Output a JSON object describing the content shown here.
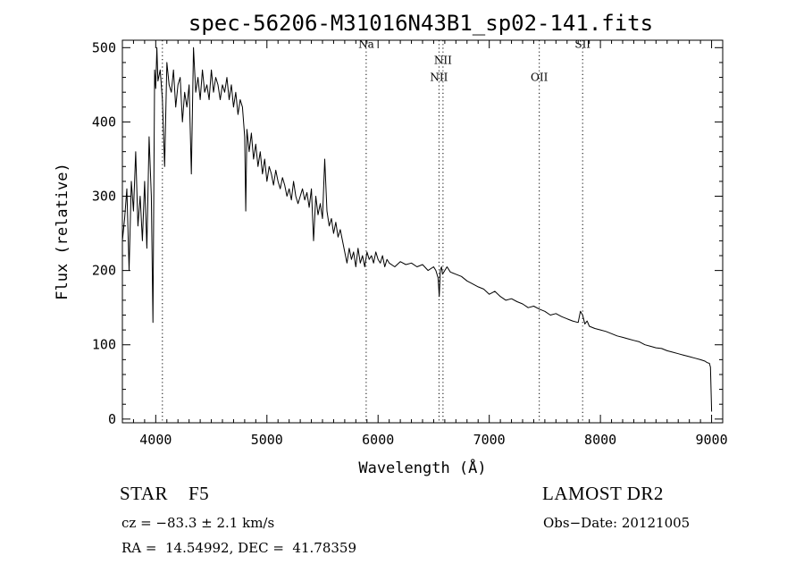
{
  "chart_data": {
    "type": "line",
    "title": "spec-56206-M31016N43B1_sp02-141.fits",
    "xlabel": "Wavelength (Å)",
    "ylabel": "Flux (relative)",
    "xlim": [
      3700,
      9100
    ],
    "ylim": [
      -5,
      510
    ],
    "xticks": [
      4000,
      5000,
      6000,
      7000,
      8000,
      9000
    ],
    "yticks": [
      0,
      100,
      200,
      300,
      400,
      500
    ],
    "grid": false,
    "line_color": "#000000",
    "lines": [
      {
        "name": "Na",
        "x": 5893,
        "label_y": 500
      },
      {
        "name": "NII",
        "x": 6548,
        "label_y": 455
      },
      {
        "name": "NII",
        "x": 6584,
        "label_y": 478
      },
      {
        "name": "OII",
        "x": 7450,
        "label_y": 455
      },
      {
        "name": "SII",
        "x": 7840,
        "label_y": 500
      },
      {
        "name": "",
        "x": 4060,
        "label_y": 0
      }
    ],
    "spectrum": {
      "x": [
        3700,
        3720,
        3740,
        3760,
        3780,
        3800,
        3820,
        3840,
        3860,
        3880,
        3900,
        3920,
        3940,
        3960,
        3975,
        3990,
        4000,
        4010,
        4020,
        4040,
        4060,
        4080,
        4100,
        4120,
        4140,
        4160,
        4180,
        4200,
        4220,
        4240,
        4260,
        4280,
        4300,
        4320,
        4340,
        4360,
        4380,
        4400,
        4420,
        4440,
        4460,
        4480,
        4500,
        4520,
        4540,
        4560,
        4580,
        4600,
        4620,
        4640,
        4660,
        4680,
        4700,
        4720,
        4740,
        4760,
        4780,
        4800,
        4810,
        4820,
        4840,
        4860,
        4880,
        4900,
        4920,
        4940,
        4960,
        4980,
        5000,
        5020,
        5040,
        5060,
        5080,
        5100,
        5120,
        5140,
        5160,
        5180,
        5200,
        5220,
        5240,
        5260,
        5280,
        5300,
        5320,
        5340,
        5360,
        5380,
        5400,
        5420,
        5440,
        5460,
        5480,
        5500,
        5520,
        5540,
        5560,
        5580,
        5600,
        5620,
        5640,
        5660,
        5680,
        5700,
        5720,
        5740,
        5760,
        5780,
        5800,
        5820,
        5840,
        5860,
        5880,
        5900,
        5920,
        5940,
        5960,
        5980,
        6000,
        6020,
        6040,
        6060,
        6080,
        6100,
        6150,
        6200,
        6250,
        6300,
        6350,
        6400,
        6450,
        6500,
        6520,
        6540,
        6550,
        6560,
        6570,
        6580,
        6600,
        6620,
        6650,
        6700,
        6750,
        6800,
        6850,
        6900,
        6950,
        7000,
        7050,
        7100,
        7150,
        7200,
        7250,
        7300,
        7350,
        7400,
        7450,
        7500,
        7550,
        7600,
        7650,
        7700,
        7750,
        7800,
        7820,
        7840,
        7860,
        7880,
        7900,
        7950,
        8000,
        8050,
        8100,
        8150,
        8200,
        8250,
        8300,
        8350,
        8400,
        8450,
        8500,
        8550,
        8600,
        8650,
        8700,
        8750,
        8800,
        8850,
        8900,
        8940,
        8960,
        8980,
        8990,
        9000
      ],
      "y": [
        240,
        270,
        310,
        200,
        320,
        280,
        360,
        260,
        300,
        240,
        320,
        230,
        380,
        300,
        130,
        470,
        445,
        500,
        455,
        470,
        430,
        340,
        480,
        450,
        440,
        470,
        420,
        450,
        460,
        400,
        440,
        420,
        450,
        330,
        500,
        440,
        460,
        430,
        470,
        440,
        450,
        430,
        470,
        440,
        460,
        450,
        430,
        450,
        440,
        460,
        430,
        450,
        420,
        440,
        410,
        430,
        420,
        380,
        280,
        390,
        360,
        385,
        350,
        370,
        340,
        360,
        330,
        350,
        320,
        340,
        330,
        315,
        335,
        320,
        310,
        325,
        315,
        300,
        310,
        295,
        320,
        300,
        290,
        300,
        310,
        295,
        305,
        285,
        310,
        240,
        300,
        275,
        290,
        270,
        350,
        280,
        260,
        270,
        250,
        265,
        245,
        255,
        240,
        225,
        210,
        230,
        215,
        225,
        205,
        230,
        210,
        220,
        205,
        225,
        215,
        220,
        210,
        225,
        215,
        210,
        220,
        205,
        215,
        210,
        205,
        212,
        208,
        210,
        205,
        208,
        200,
        205,
        200,
        190,
        165,
        200,
        205,
        195,
        200,
        205,
        198,
        195,
        192,
        186,
        182,
        178,
        175,
        168,
        172,
        165,
        160,
        162,
        158,
        155,
        150,
        152,
        148,
        145,
        140,
        142,
        138,
        135,
        132,
        130,
        145,
        140,
        128,
        132,
        125,
        122,
        120,
        118,
        115,
        112,
        110,
        108,
        106,
        104,
        100,
        98,
        96,
        95,
        92,
        90,
        88,
        86,
        84,
        82,
        80,
        78,
        76,
        75,
        70,
        10
      ]
    },
    "info": {
      "class": "STAR    F5",
      "survey": "LAMOST DR2",
      "cz": "cz = −83.3 ± 2.1 km/s",
      "obsdate": "Obs−Date: 20121005",
      "radec": "RA =  14.54992, DEC =  41.78359"
    }
  }
}
